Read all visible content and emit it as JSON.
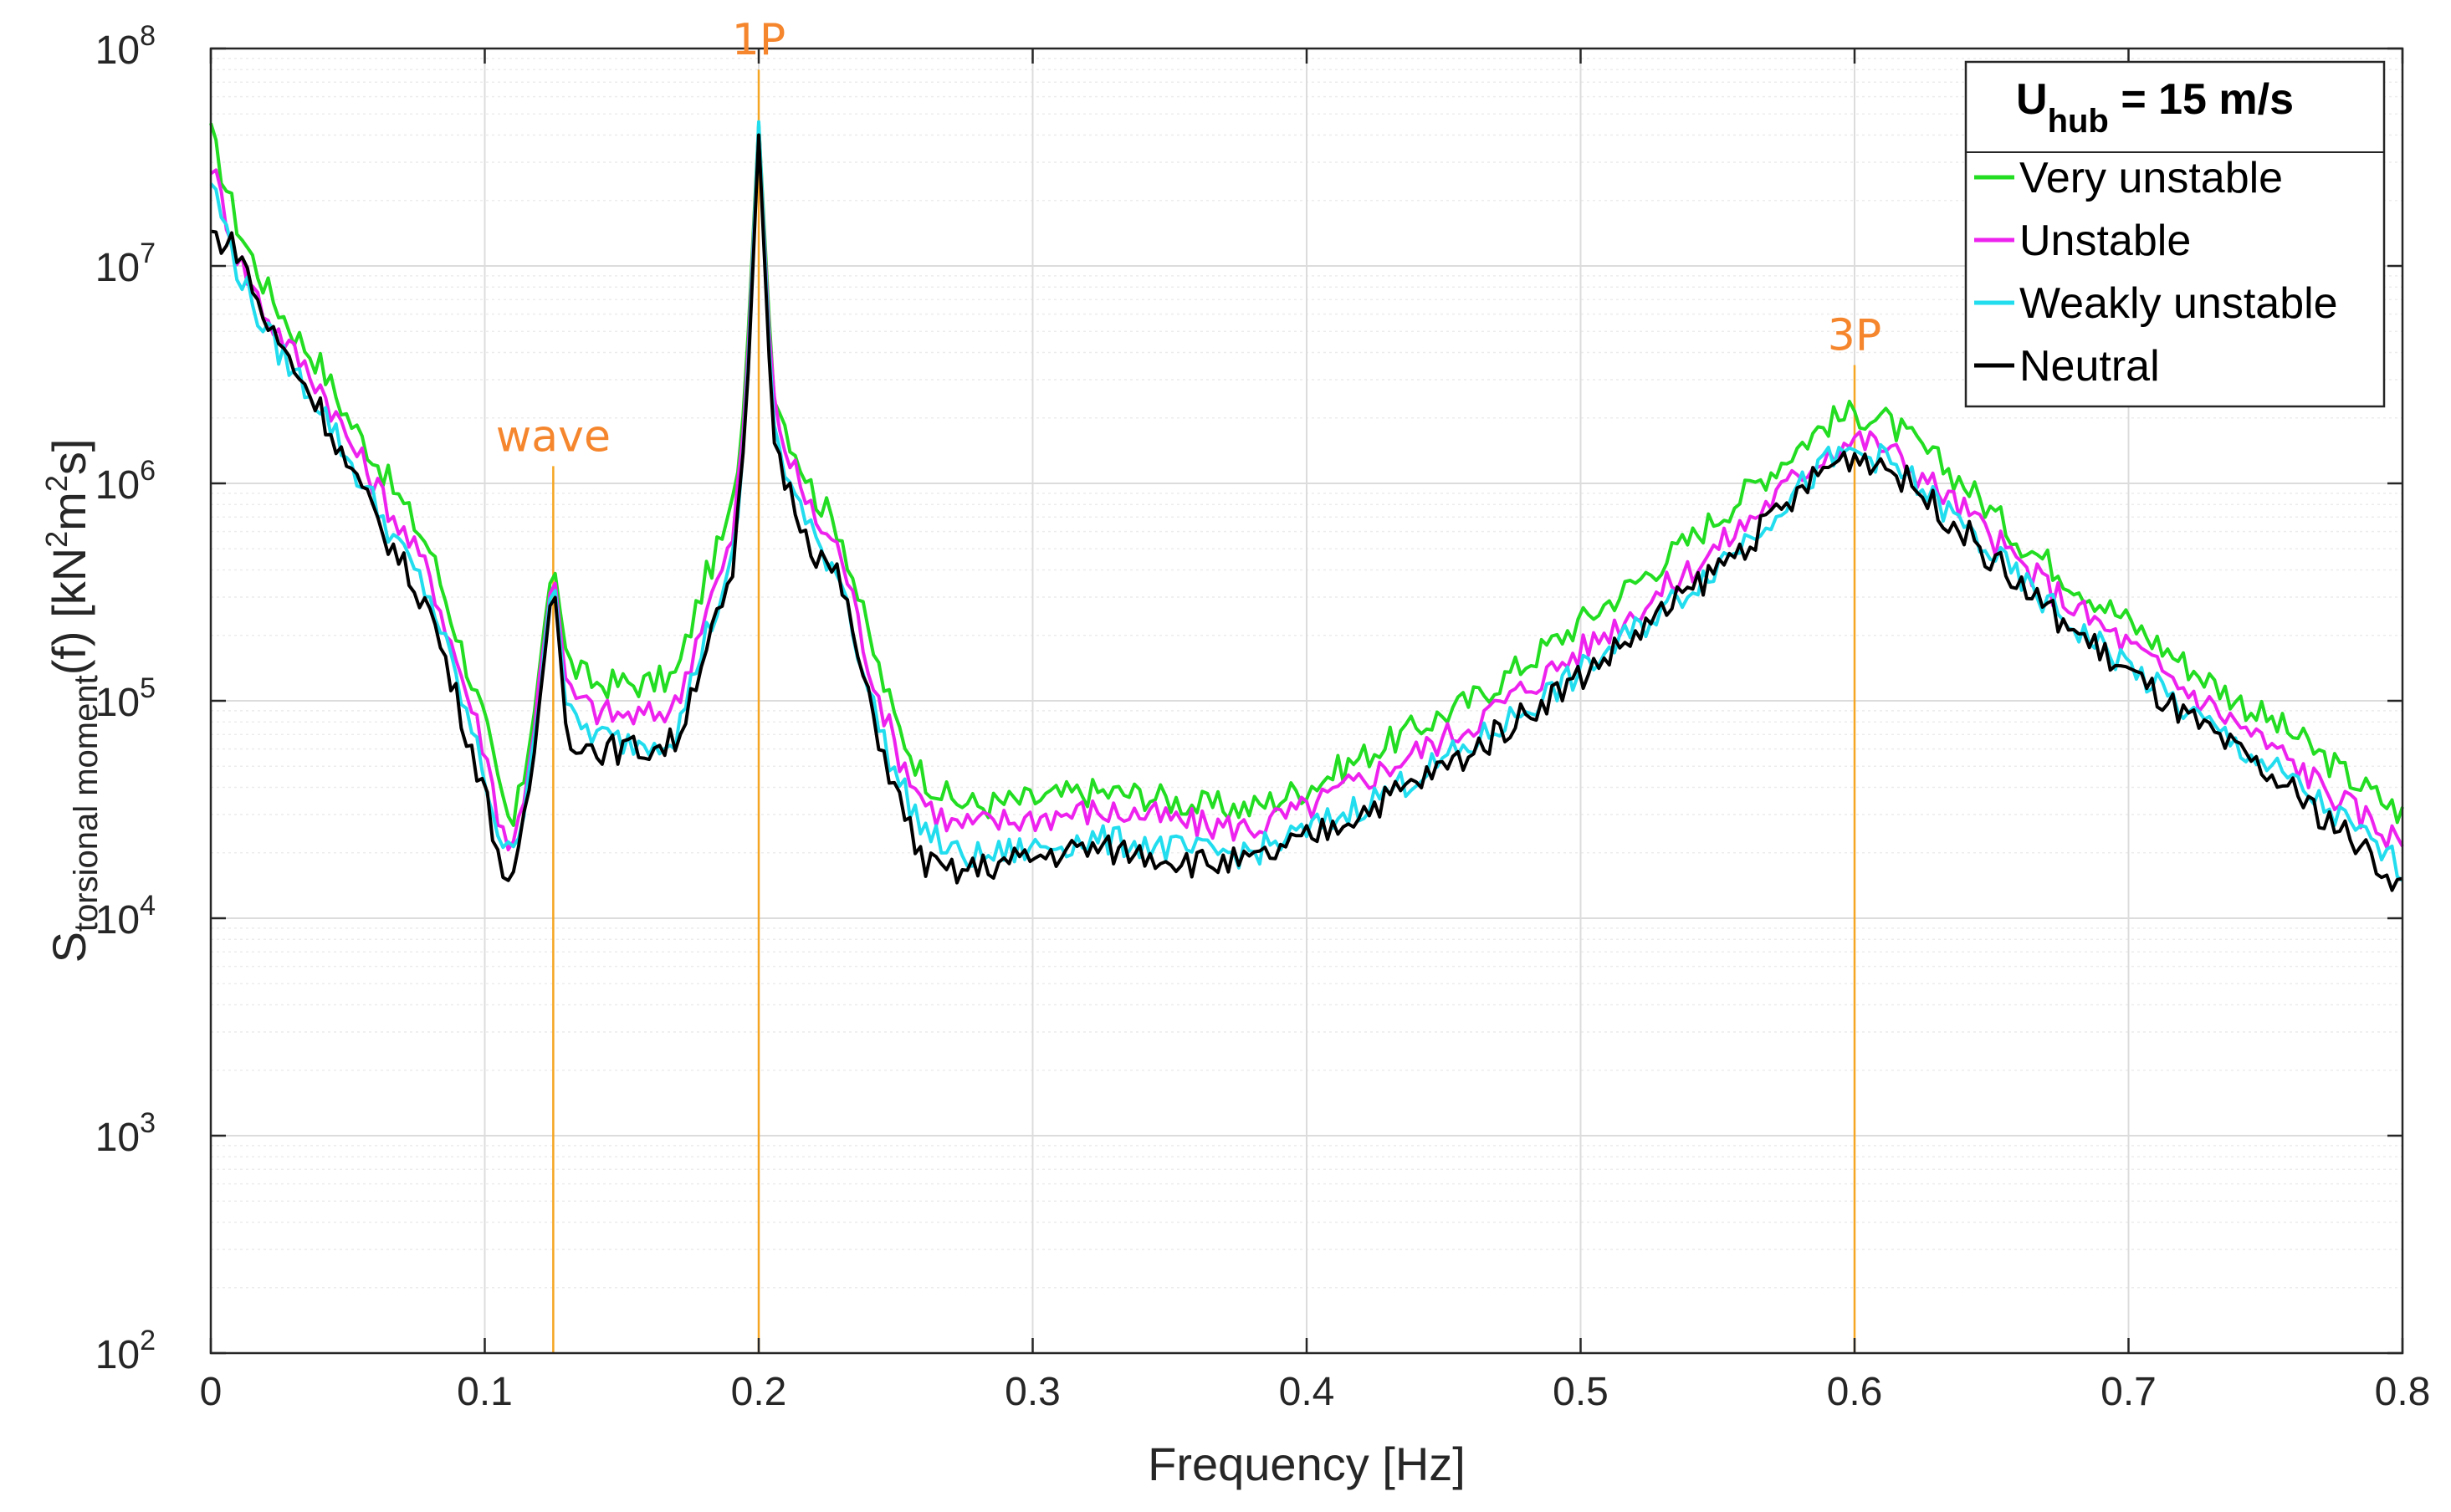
{
  "chart_data": {
    "type": "line",
    "title": "",
    "xlabel": "Frequency [Hz]",
    "ylabel": {
      "base": "S",
      "sub": "torsional moment",
      "rest": "(f) [kN",
      "sup1": "2",
      "mid": "m",
      "sup2": "2",
      "end": "s]"
    },
    "xlim": [
      0,
      0.8
    ],
    "ylim": [
      100,
      100000000
    ],
    "yscale": "log",
    "grid": true,
    "x_ticks": [
      0,
      0.1,
      0.2,
      0.3,
      0.4,
      0.5,
      0.6,
      0.7,
      0.8
    ],
    "x_tick_labels": [
      "0",
      "0.1",
      "0.2",
      "0.3",
      "0.4",
      "0.5",
      "0.6",
      "0.7",
      "0.8"
    ],
    "y_ticks": [
      {
        "base": "10",
        "exp": "2",
        "value": 100
      },
      {
        "base": "10",
        "exp": "3",
        "value": 1000
      },
      {
        "base": "10",
        "exp": "4",
        "value": 10000
      },
      {
        "base": "10",
        "exp": "5",
        "value": 100000
      },
      {
        "base": "10",
        "exp": "6",
        "value": 1000000
      },
      {
        "base": "10",
        "exp": "7",
        "value": 10000000
      },
      {
        "base": "10",
        "exp": "8",
        "value": 100000000
      }
    ],
    "legend": {
      "title_main": "U",
      "title_sub": "hub",
      "title_rest": " = 15 m/s",
      "position": "top-right"
    },
    "annotations": [
      {
        "label": "wave",
        "x": 0.125,
        "top": 1200000,
        "color": "#f5a623"
      },
      {
        "label": "1P",
        "x": 0.2,
        "top": 80000000,
        "color": "#f5a623"
      },
      {
        "label": "3P",
        "x": 0.6,
        "top": 3500000,
        "color": "#f5a623"
      }
    ],
    "series": [
      {
        "name": "Very unstable",
        "color": "#22dd22",
        "x": [
          0,
          0.01,
          0.02,
          0.03,
          0.04,
          0.05,
          0.06,
          0.07,
          0.08,
          0.09,
          0.1,
          0.105,
          0.11,
          0.115,
          0.12,
          0.125,
          0.13,
          0.14,
          0.15,
          0.16,
          0.17,
          0.18,
          0.19,
          0.195,
          0.2,
          0.205,
          0.21,
          0.22,
          0.23,
          0.24,
          0.25,
          0.26,
          0.27,
          0.28,
          0.3,
          0.32,
          0.34,
          0.36,
          0.38,
          0.4,
          0.42,
          0.44,
          0.46,
          0.48,
          0.5,
          0.52,
          0.54,
          0.56,
          0.58,
          0.59,
          0.6,
          0.61,
          0.62,
          0.64,
          0.66,
          0.68,
          0.7,
          0.72,
          0.74,
          0.76,
          0.78,
          0.8
        ],
        "values": [
          40000000,
          15000000,
          8000000,
          5000000,
          3500000,
          2000000,
          1300000,
          800000,
          500000,
          200000,
          80000,
          40000,
          25000,
          50000,
          150000,
          450000,
          150000,
          120000,
          120000,
          120000,
          130000,
          350000,
          700000,
          2500000,
          45000000,
          3000000,
          1800000,
          900000,
          600000,
          200000,
          80000,
          45000,
          35000,
          33000,
          35000,
          38000,
          37000,
          33000,
          32000,
          40000,
          55000,
          75000,
          100000,
          150000,
          230000,
          350000,
          550000,
          900000,
          1500000,
          1900000,
          2100000,
          2000000,
          1600000,
          1000000,
          550000,
          350000,
          230000,
          150000,
          100000,
          70000,
          45000,
          30000
        ]
      },
      {
        "name": "Unstable",
        "color": "#ee22ee",
        "x": [
          0,
          0.01,
          0.02,
          0.03,
          0.04,
          0.05,
          0.06,
          0.07,
          0.08,
          0.09,
          0.1,
          0.105,
          0.11,
          0.115,
          0.12,
          0.125,
          0.13,
          0.14,
          0.15,
          0.16,
          0.17,
          0.18,
          0.19,
          0.195,
          0.2,
          0.205,
          0.21,
          0.22,
          0.23,
          0.24,
          0.25,
          0.26,
          0.27,
          0.28,
          0.3,
          0.32,
          0.34,
          0.36,
          0.38,
          0.4,
          0.42,
          0.44,
          0.46,
          0.48,
          0.5,
          0.52,
          0.54,
          0.56,
          0.58,
          0.59,
          0.6,
          0.61,
          0.62,
          0.64,
          0.66,
          0.68,
          0.7,
          0.72,
          0.74,
          0.76,
          0.78,
          0.8
        ],
        "values": [
          30000000,
          11000000,
          6000000,
          4000000,
          2800000,
          1600000,
          1000000,
          600000,
          380000,
          150000,
          60000,
          30000,
          20000,
          42000,
          120000,
          420000,
          110000,
          90000,
          85000,
          85000,
          95000,
          250000,
          500000,
          2000000,
          44000000,
          2500000,
          1400000,
          700000,
          480000,
          150000,
          60000,
          35000,
          27000,
          27000,
          29000,
          31000,
          30000,
          27000,
          26000,
          32000,
          43000,
          58000,
          78000,
          115000,
          170000,
          260000,
          400000,
          650000,
          1100000,
          1400000,
          1600000,
          1500000,
          1200000,
          750000,
          430000,
          270000,
          180000,
          115000,
          78000,
          52000,
          33000,
          22000
        ]
      },
      {
        "name": "Weakly unstable",
        "color": "#22ddee",
        "x": [
          0,
          0.01,
          0.02,
          0.03,
          0.04,
          0.05,
          0.06,
          0.07,
          0.08,
          0.09,
          0.1,
          0.105,
          0.11,
          0.115,
          0.12,
          0.125,
          0.13,
          0.14,
          0.15,
          0.16,
          0.17,
          0.18,
          0.19,
          0.195,
          0.2,
          0.205,
          0.21,
          0.22,
          0.23,
          0.24,
          0.25,
          0.26,
          0.27,
          0.28,
          0.3,
          0.32,
          0.34,
          0.36,
          0.38,
          0.4,
          0.42,
          0.44,
          0.46,
          0.48,
          0.5,
          0.52,
          0.54,
          0.56,
          0.58,
          0.59,
          0.6,
          0.61,
          0.62,
          0.64,
          0.66,
          0.68,
          0.7,
          0.72,
          0.74,
          0.76,
          0.78,
          0.8
        ],
        "values": [
          25000000,
          9500000,
          5000000,
          3300000,
          2300000,
          1300000,
          800000,
          480000,
          300000,
          120000,
          45000,
          25000,
          18000,
          38000,
          110000,
          400000,
          85000,
          70000,
          65000,
          65000,
          70000,
          190000,
          380000,
          1600000,
          46000000,
          2000000,
          1100000,
          550000,
          380000,
          110000,
          45000,
          26000,
          20000,
          19000,
          21000,
          23000,
          22000,
          20000,
          20000,
          25000,
          33000,
          45000,
          62000,
          92000,
          135000,
          210000,
          330000,
          550000,
          950000,
          1250000,
          1400000,
          1300000,
          1050000,
          630000,
          360000,
          220000,
          145000,
          92000,
          62000,
          42000,
          27000,
          17000
        ]
      },
      {
        "name": "Neutral",
        "color": "#000000",
        "x": [
          0,
          0.01,
          0.02,
          0.03,
          0.04,
          0.05,
          0.06,
          0.07,
          0.08,
          0.09,
          0.1,
          0.105,
          0.11,
          0.115,
          0.12,
          0.125,
          0.13,
          0.14,
          0.15,
          0.16,
          0.17,
          0.18,
          0.19,
          0.195,
          0.2,
          0.205,
          0.21,
          0.22,
          0.23,
          0.24,
          0.25,
          0.26,
          0.27,
          0.28,
          0.3,
          0.32,
          0.34,
          0.36,
          0.38,
          0.4,
          0.42,
          0.44,
          0.46,
          0.48,
          0.5,
          0.52,
          0.54,
          0.56,
          0.58,
          0.59,
          0.6,
          0.61,
          0.62,
          0.64,
          0.66,
          0.68,
          0.7,
          0.72,
          0.74,
          0.76,
          0.78,
          0.8
        ],
        "values": [
          14000000,
          12000000,
          5500000,
          3500000,
          2200000,
          1200000,
          700000,
          420000,
          260000,
          100000,
          38000,
          20000,
          13000,
          30000,
          95000,
          380000,
          70000,
          60000,
          60000,
          60000,
          65000,
          170000,
          330000,
          1500000,
          40000000,
          1800000,
          1000000,
          500000,
          350000,
          100000,
          38000,
          18000,
          16000,
          17000,
          19000,
          21000,
          20000,
          18000,
          18000,
          23000,
          31000,
          42000,
          58000,
          88000,
          130000,
          200000,
          320000,
          520000,
          900000,
          1200000,
          1350000,
          1250000,
          1000000,
          600000,
          340000,
          210000,
          135000,
          85000,
          57000,
          38000,
          24000,
          14000
        ]
      }
    ]
  }
}
